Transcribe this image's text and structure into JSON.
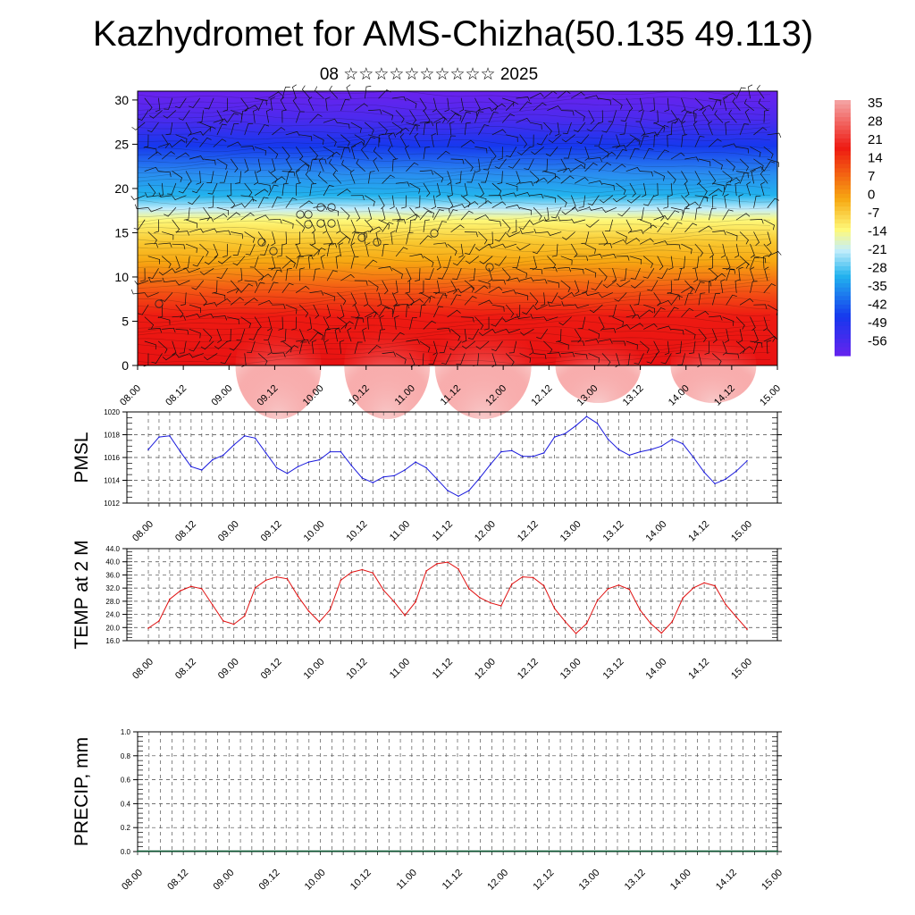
{
  "title": "Kazhydromet for AMS-Chizha(50.135 49.113)",
  "subtitle": "08 ☆☆☆☆☆☆☆☆☆☆ 2025",
  "chart_data": [
    {
      "type": "heatmap",
      "name": "cross-section",
      "yticks": [
        "0",
        "5",
        "10",
        "15",
        "20",
        "25",
        "30"
      ],
      "ylim": [
        0,
        31
      ],
      "xticks": [
        "08.00",
        "08.12",
        "09.00",
        "09.12",
        "10.00",
        "10.12",
        "11.00",
        "11.12",
        "12.00",
        "12.12",
        "13.00",
        "13.12",
        "14.00",
        "14.12",
        "15.00"
      ],
      "colorbar": {
        "labels": [
          "35",
          "28",
          "21",
          "14",
          "7",
          "0",
          "-7",
          "-14",
          "-21",
          "-28",
          "-35",
          "-42",
          "-49",
          "-56"
        ],
        "colors": {
          "hot": "#f4a0a0",
          "red": "#ee1a12",
          "orange": "#f7a812",
          "yellow": "#fef97a",
          "lightblue": "#c4eefb",
          "cyan": "#22b3ee",
          "blue": "#1638ee",
          "purple": "#6a22ee"
        }
      },
      "circle_labels": [
        "7",
        "13",
        "14",
        "16",
        "16",
        "16",
        "16",
        "17",
        "17",
        "18",
        "18",
        "14",
        "15",
        "11"
      ],
      "overlay": "wind barbs"
    },
    {
      "type": "line",
      "ylabel": "PMSL",
      "ylim": [
        1012,
        1020
      ],
      "yticks": [
        "1012",
        "1014",
        "1016",
        "1018",
        "1020"
      ],
      "xticks": [
        "08.00",
        "08.12",
        "09.00",
        "09.12",
        "10.00",
        "10.12",
        "11.00",
        "11.12",
        "12.00",
        "12.12",
        "13.00",
        "13.12",
        "14.00",
        "14.12",
        "15.00"
      ],
      "color": "#1a1adc",
      "series": [
        {
          "values": [
            1016.7,
            1017.8,
            1017.9,
            1016.5,
            1015.2,
            1014.9,
            1015.8,
            1016.2,
            1017.1,
            1017.9,
            1017.7,
            1016.4,
            1015.1,
            1014.6,
            1015.2,
            1015.6,
            1015.8,
            1016.5,
            1016.5,
            1015.3,
            1014.2,
            1013.8,
            1014.3,
            1014.4,
            1014.9,
            1015.6,
            1015.1,
            1014.1,
            1013.1,
            1012.6,
            1013.1,
            1014.2,
            1015.4,
            1016.5,
            1016.6,
            1016.1,
            1016.1,
            1016.4,
            1017.8,
            1018.1,
            1018.8,
            1019.6,
            1019.0,
            1017.6,
            1016.7,
            1016.2,
            1016.5,
            1016.7,
            1017.0,
            1017.6,
            1017.2,
            1016.0,
            1014.7,
            1013.7,
            1014.1,
            1014.8,
            1015.7
          ]
        }
      ]
    },
    {
      "type": "line",
      "ylabel": "TEMP at 2 M",
      "ylim": [
        16,
        44
      ],
      "yticks": [
        "16.0",
        "20.0",
        "24.0",
        "28.0",
        "32.0",
        "36.0",
        "40.0",
        "44.0"
      ],
      "xticks": [
        "08.00",
        "08.12",
        "09.00",
        "09.12",
        "10.00",
        "10.12",
        "11.00",
        "11.12",
        "12.00",
        "12.12",
        "13.00",
        "13.12",
        "14.00",
        "14.12",
        "15.00"
      ],
      "color": "#e01010",
      "series": [
        {
          "values": [
            19.8,
            22.0,
            28.6,
            31.2,
            32.5,
            31.8,
            26.9,
            22.0,
            21.0,
            23.5,
            32.1,
            34.4,
            35.4,
            34.8,
            29.5,
            25.0,
            21.7,
            25.4,
            34.4,
            36.8,
            37.6,
            36.6,
            31.4,
            27.8,
            23.7,
            27.8,
            37.2,
            39.4,
            39.9,
            37.8,
            31.8,
            29.1,
            27.5,
            26.6,
            33.2,
            35.4,
            35.2,
            32.7,
            25.8,
            21.8,
            18.2,
            21.2,
            28.2,
            31.8,
            32.9,
            31.6,
            25.3,
            21.2,
            18.3,
            21.8,
            29.0,
            32.1,
            33.6,
            32.7,
            27.0,
            23.2,
            19.5
          ]
        }
      ]
    },
    {
      "type": "bar",
      "ylabel": "PRECIP, mm",
      "ylim": [
        0,
        1
      ],
      "yticks": [
        "0.0",
        "0.2",
        "0.4",
        "0.6",
        "0.8",
        "1.0"
      ],
      "xticks": [
        "08.00",
        "08.12",
        "09.00",
        "09.12",
        "10.00",
        "10.12",
        "11.00",
        "11.12",
        "12.00",
        "12.12",
        "13.00",
        "13.12",
        "14.00",
        "14.12",
        "15.00"
      ],
      "color": "#0b5a34",
      "values": [
        0,
        0,
        0,
        0,
        0,
        0,
        0,
        0,
        0,
        0,
        0,
        0,
        0,
        0,
        0,
        0,
        0,
        0,
        0,
        0,
        0,
        0,
        0,
        0,
        0,
        0,
        0,
        0,
        0,
        0,
        0,
        0,
        0,
        0,
        0,
        0,
        0,
        0,
        0,
        0,
        0,
        0,
        0,
        0,
        0,
        0,
        0,
        0,
        0,
        0,
        0,
        0,
        0,
        0,
        0,
        0,
        0
      ]
    }
  ]
}
